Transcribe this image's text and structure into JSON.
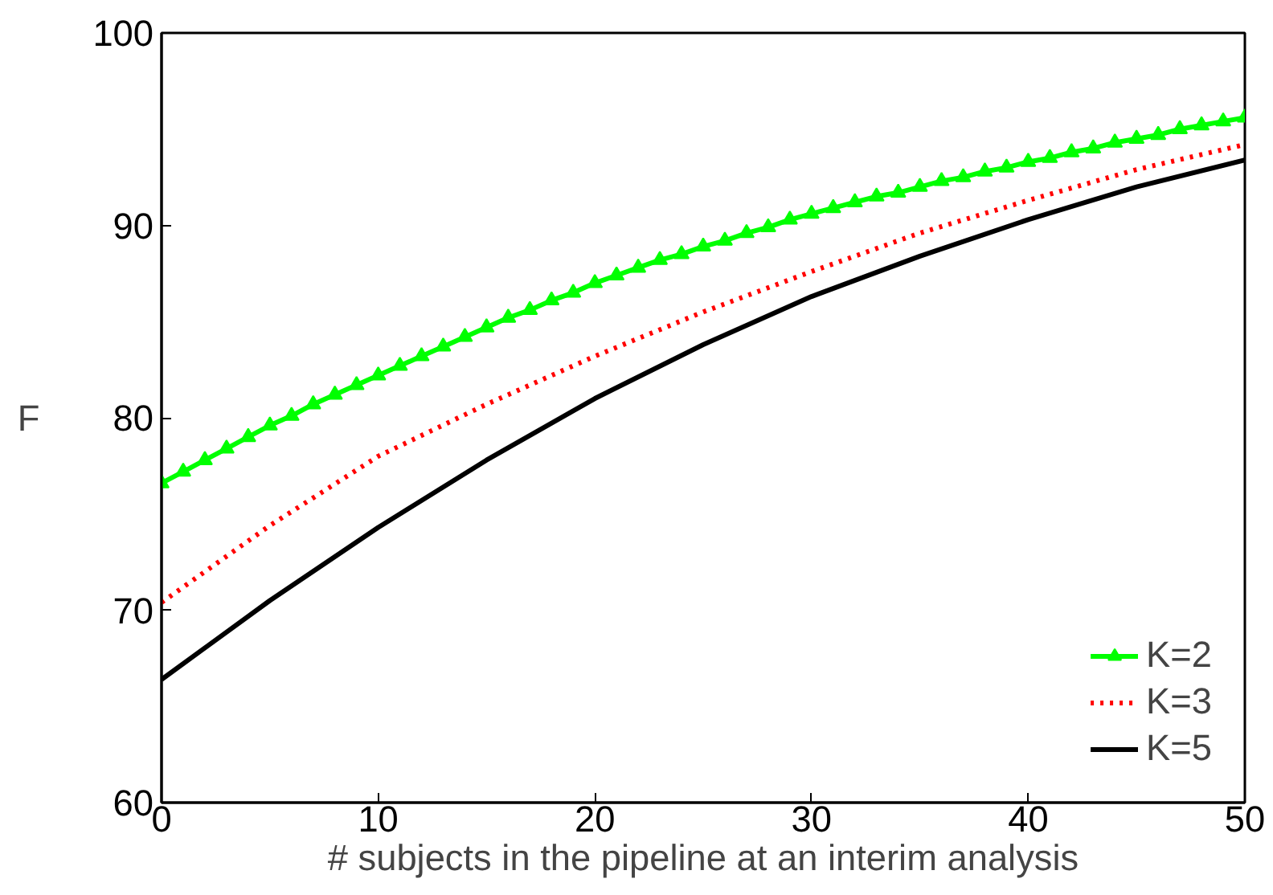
{
  "chart_data": {
    "type": "line",
    "xlabel": "# subjects in the pipeline at an interim analysis",
    "ylabel": "F",
    "xlim": [
      0,
      50
    ],
    "xticks": [
      0,
      10,
      20,
      30,
      40,
      50
    ],
    "ylim": [
      60,
      100
    ],
    "yticks": [
      60,
      70,
      80,
      90,
      100
    ],
    "grid": false,
    "legend": "bottom right",
    "series": [
      {
        "name": "K=2",
        "color": "#00ff00",
        "marker": "triangle",
        "line_style": "solid",
        "x": [
          0,
          1,
          2,
          3,
          4,
          5,
          6,
          7,
          8,
          9,
          10,
          11,
          12,
          13,
          14,
          15,
          16,
          17,
          18,
          19,
          20,
          21,
          22,
          23,
          24,
          25,
          26,
          27,
          28,
          29,
          30,
          31,
          32,
          33,
          34,
          35,
          36,
          37,
          38,
          39,
          40,
          41,
          42,
          43,
          44,
          45,
          46,
          47,
          48,
          49,
          50
        ],
        "values": [
          76.6,
          77.2,
          77.8,
          78.4,
          79.0,
          79.6,
          80.1,
          80.7,
          81.2,
          81.7,
          82.2,
          82.7,
          83.2,
          83.7,
          84.2,
          84.7,
          85.2,
          85.6,
          86.1,
          86.5,
          87.0,
          87.4,
          87.8,
          88.2,
          88.5,
          88.9,
          89.2,
          89.6,
          89.9,
          90.3,
          90.6,
          90.9,
          91.2,
          91.5,
          91.7,
          92.0,
          92.3,
          92.5,
          92.8,
          93.0,
          93.3,
          93.5,
          93.8,
          94.0,
          94.3,
          94.5,
          94.7,
          95.0,
          95.2,
          95.4,
          95.6
        ]
      },
      {
        "name": "K=3",
        "color": "#ff0000",
        "marker": "none",
        "line_style": "dotted",
        "x": [
          0,
          5,
          10,
          15,
          20,
          25,
          30,
          35,
          40,
          45,
          50
        ],
        "values": [
          70.4,
          74.4,
          78.0,
          80.7,
          83.2,
          85.5,
          87.6,
          89.6,
          91.3,
          92.9,
          94.2
        ]
      },
      {
        "name": "K=5",
        "color": "#000000",
        "marker": "none",
        "line_style": "solid",
        "x": [
          0,
          5,
          10,
          15,
          20,
          25,
          30,
          35,
          40,
          45,
          50
        ],
        "values": [
          66.4,
          70.5,
          74.3,
          77.8,
          81.0,
          83.8,
          86.3,
          88.4,
          90.3,
          92.0,
          93.4
        ]
      }
    ]
  }
}
